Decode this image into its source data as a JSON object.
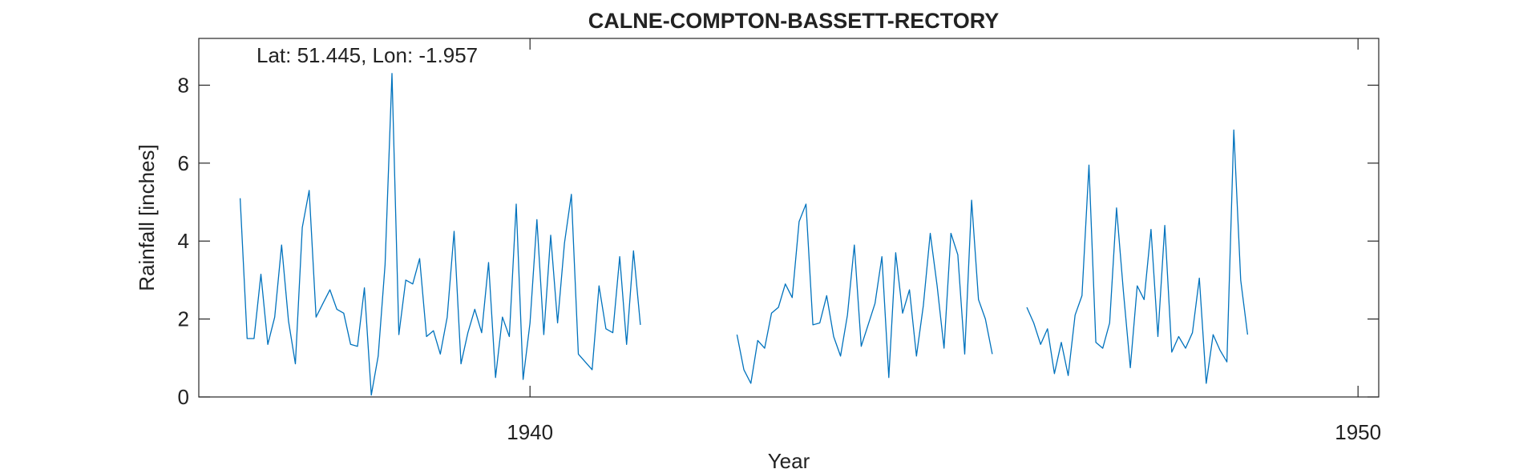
{
  "chart_data": {
    "type": "line",
    "title": "CALNE-COMPTON-BASSETT-RECTORY",
    "annotation": "Lat: 51.445, Lon: -1.957",
    "xlabel": "Year",
    "ylabel": "Rainfall [inches]",
    "xlim": [
      1936.0,
      1950.25
    ],
    "ylim": [
      0,
      9.2
    ],
    "xticks": [
      1940,
      1950
    ],
    "yticks": [
      0,
      2,
      4,
      6,
      8
    ],
    "grid": false,
    "line_color": "#0072BD",
    "segments": [
      {
        "x_start": 1936.5,
        "values": [
          5.1,
          1.5,
          1.5,
          3.15,
          1.35,
          2.05,
          3.9,
          1.95,
          0.85,
          4.35,
          5.3,
          2.05,
          2.4,
          2.75,
          2.25,
          2.15,
          1.35,
          1.3,
          2.8,
          0.05,
          1.05,
          3.4,
          8.3,
          1.6,
          3.0,
          2.9,
          3.55,
          1.55,
          1.7,
          1.1,
          2.05,
          4.25,
          0.85,
          1.65,
          2.25,
          1.65,
          3.45,
          0.5,
          2.05,
          1.55,
          4.95,
          0.45,
          1.9,
          4.55,
          1.6,
          4.15,
          1.9,
          3.95,
          5.2,
          1.1,
          0.9,
          0.7,
          2.85,
          1.75,
          1.65,
          3.6,
          1.35,
          3.75,
          1.85
        ]
      },
      {
        "x_start": 1942.5,
        "values": [
          1.6,
          0.7,
          0.35,
          1.45,
          1.25,
          2.15,
          2.3,
          2.9,
          2.55,
          4.5,
          4.95,
          1.85,
          1.9,
          2.6,
          1.55,
          1.05,
          2.1,
          3.9,
          1.3,
          1.85,
          2.4,
          3.6,
          0.5,
          3.7,
          2.15,
          2.75,
          1.05,
          2.35,
          4.2,
          2.85,
          1.25,
          4.2,
          3.65,
          1.1,
          5.05,
          2.5,
          2.0,
          1.1
        ]
      },
      {
        "x_start": 1946.0,
        "values": [
          2.3,
          1.9,
          1.35,
          1.75,
          0.6,
          1.4,
          0.55,
          2.1,
          2.6,
          5.95,
          1.4,
          1.25,
          1.9,
          4.85,
          2.7,
          0.75,
          2.85,
          2.5,
          4.3,
          1.55,
          4.4,
          1.15,
          1.55,
          1.25,
          1.65,
          3.05,
          0.35,
          1.6,
          1.2,
          0.9,
          6.85,
          3.0,
          1.6
        ]
      }
    ]
  }
}
